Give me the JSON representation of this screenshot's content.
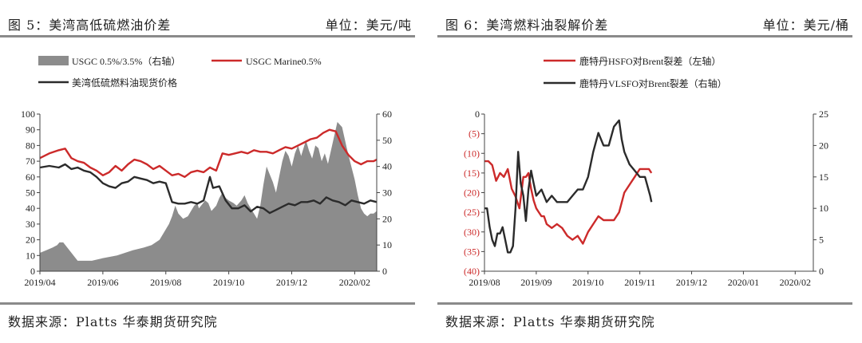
{
  "left": {
    "title": "图 5：美湾高低硫燃油价差",
    "unit": "单位：美元/吨",
    "source": "数据来源：Platts 华泰期货研究院"
  },
  "right": {
    "title": "图 6：美湾燃料油裂解价差",
    "unit": "单位：美元/桶",
    "source": "数据来源：Platts 华泰期货研究院"
  },
  "colors": {
    "red": "#cc2a2a",
    "dark": "#2b2b2b",
    "gray": "#8c8c8c",
    "axis": "#444444",
    "rule": "#8a8a8a"
  },
  "chart_data": [
    {
      "type": "area+line",
      "x_range": [
        "2019/04",
        "2020/02"
      ],
      "xtick_labels": [
        "2019/04",
        "2019/06",
        "2019/08",
        "2019/10",
        "2019/12",
        "2020/02"
      ],
      "y_left": {
        "lim": [
          0,
          100
        ],
        "ticks": [
          "0",
          "10",
          "20",
          "30",
          "40",
          "50",
          "60",
          "70",
          "80",
          "90",
          "100"
        ]
      },
      "y_right": {
        "lim": [
          0,
          60
        ],
        "ticks": [
          "0",
          "10",
          "20",
          "30",
          "40",
          "50",
          "60"
        ]
      },
      "legend": [
        "USGC 0.5%/3.5%（右轴）",
        "USGC Marine0.5%",
        "美湾低硫燃料油现货价格"
      ],
      "series": [
        {
          "name": "USGC 0.5%/3.5%（右轴）",
          "kind": "area",
          "axis": "right",
          "color": "#8c8c8c",
          "x": [
            0,
            0.2,
            0.4,
            0.55,
            0.62,
            0.74,
            1.2,
            1.65,
            2.0,
            2.45,
            2.7,
            2.95,
            3.3,
            3.55,
            3.8,
            3.95,
            4.1,
            4.2,
            4.3,
            4.4,
            4.55,
            4.7,
            4.8,
            4.9,
            5.0,
            5.05,
            5.12,
            5.25,
            5.35,
            5.45,
            5.6,
            5.7,
            5.8,
            5.9,
            6.0,
            6.15,
            6.25,
            6.4,
            6.5,
            6.6,
            6.7,
            6.8,
            6.9,
            7.0,
            7.1,
            7.2,
            7.3,
            7.4,
            7.5,
            7.6,
            7.7,
            7.8,
            7.9,
            8.0,
            8.1,
            8.2,
            8.3,
            8.45,
            8.55,
            8.65,
            8.75,
            8.85,
            8.95,
            9.05,
            9.15,
            9.3,
            9.45,
            9.6,
            9.75,
            9.85,
            10.0,
            10.1,
            10.2,
            10.3,
            10.4,
            10.5,
            10.6,
            10.7
          ],
          "values": [
            7,
            8,
            9,
            10,
            11,
            11,
            4,
            4,
            5,
            6,
            7,
            8,
            9,
            10,
            12,
            15,
            18,
            21,
            25,
            22,
            20,
            21,
            23,
            25,
            26,
            24,
            25,
            27,
            26,
            23,
            25,
            28,
            30,
            28,
            27,
            26,
            25,
            27,
            29,
            26,
            24,
            22,
            20,
            25,
            33,
            40,
            37,
            34,
            30,
            36,
            42,
            46,
            44,
            40,
            45,
            48,
            44,
            50,
            46,
            43,
            48,
            47,
            42,
            45,
            41,
            49,
            57,
            55,
            47,
            42,
            35,
            29,
            24,
            22,
            21,
            22,
            22,
            23
          ]
        },
        {
          "name": "USGC Marine0.5%",
          "kind": "line",
          "axis": "left",
          "color": "#cc2a2a",
          "x": [
            0,
            0.3,
            0.6,
            0.8,
            1.0,
            1.2,
            1.4,
            1.6,
            1.8,
            2.0,
            2.2,
            2.4,
            2.6,
            2.8,
            3.0,
            3.2,
            3.4,
            3.6,
            3.8,
            4.0,
            4.2,
            4.4,
            4.6,
            4.8,
            5.0,
            5.2,
            5.4,
            5.6,
            5.8,
            6.0,
            6.2,
            6.4,
            6.6,
            6.8,
            7.0,
            7.2,
            7.4,
            7.6,
            7.8,
            8.0,
            8.2,
            8.4,
            8.6,
            8.8,
            9.0,
            9.2,
            9.4,
            9.6,
            9.8,
            10.0,
            10.2,
            10.4,
            10.6,
            10.7
          ],
          "values": [
            72,
            75,
            77,
            78,
            72,
            70,
            69,
            66,
            64,
            61,
            63,
            67,
            64,
            68,
            71,
            70,
            68,
            65,
            67,
            64,
            61,
            62,
            60,
            63,
            64,
            63,
            66,
            64,
            75,
            74,
            75,
            76,
            75,
            77,
            76,
            76,
            75,
            77,
            79,
            78,
            80,
            82,
            84,
            85,
            88,
            90,
            89,
            80,
            74,
            70,
            68,
            70,
            70,
            71
          ]
        },
        {
          "name": "美湾低硫燃料油现货价格",
          "kind": "line",
          "axis": "left",
          "color": "#2b2b2b",
          "x": [
            0,
            0.3,
            0.6,
            0.8,
            1.0,
            1.2,
            1.4,
            1.6,
            1.8,
            2.0,
            2.2,
            2.4,
            2.6,
            2.8,
            3.0,
            3.2,
            3.4,
            3.6,
            3.8,
            4.0,
            4.2,
            4.4,
            4.6,
            4.8,
            5.0,
            5.2,
            5.4,
            5.5,
            5.7,
            5.9,
            6.1,
            6.3,
            6.5,
            6.7,
            6.9,
            7.1,
            7.3,
            7.5,
            7.7,
            7.9,
            8.1,
            8.3,
            8.5,
            8.7,
            8.9,
            9.1,
            9.3,
            9.5,
            9.7,
            9.9,
            10.1,
            10.3,
            10.5,
            10.7
          ],
          "values": [
            66,
            67,
            66,
            68,
            65,
            66,
            64,
            63,
            60,
            56,
            54,
            53,
            56,
            57,
            60,
            59,
            58,
            56,
            57,
            56,
            44,
            43,
            43,
            44,
            43,
            45,
            60,
            53,
            54,
            45,
            40,
            40,
            42,
            38,
            41,
            40,
            37,
            39,
            41,
            43,
            42,
            44,
            44,
            45,
            43,
            47,
            45,
            44,
            42,
            45,
            44,
            43,
            45,
            44
          ]
        }
      ]
    },
    {
      "type": "line",
      "x_range": [
        "2019/08",
        "2020/02"
      ],
      "xtick_labels": [
        "2019/08",
        "2019/09",
        "2019/10",
        "2019/11",
        "2019/12",
        "2020/01",
        "2020/02"
      ],
      "y_left": {
        "lim": [
          -40,
          0
        ],
        "ticks": [
          "0",
          "(5)",
          "(10)",
          "(15)",
          "(20)",
          "(25)",
          "(30)",
          "(35)",
          "(40)"
        ]
      },
      "y_right": {
        "lim": [
          0,
          25
        ],
        "ticks": [
          "0",
          "5",
          "10",
          "15",
          "20",
          "25"
        ]
      },
      "legend": [
        "鹿特丹HSFO对Brent裂差（左轴）",
        "鹿特丹VLSFO对Brent裂差（右轴）"
      ],
      "series": [
        {
          "name": "鹿特丹HSFO对Brent裂差（左轴）",
          "kind": "line",
          "axis": "left",
          "color": "#cc2a2a",
          "x": [
            0,
            0.15,
            0.3,
            0.45,
            0.6,
            0.75,
            0.9,
            1.05,
            1.2,
            1.35,
            1.5,
            1.6,
            1.7,
            1.8,
            1.9,
            2.0,
            2.1,
            2.2,
            2.3,
            2.4,
            2.6,
            2.8,
            3.0,
            3.2,
            3.4,
            3.6,
            3.8,
            4.0,
            4.2,
            4.4,
            4.6,
            4.8,
            5.0,
            5.2,
            5.4,
            5.6,
            5.8,
            6.0,
            6.2,
            6.35,
            6.45
          ],
          "values": [
            -12,
            -12,
            -13,
            -17,
            -15,
            -16,
            -14,
            -19,
            -21,
            -24,
            -16,
            -16,
            -15,
            -19,
            -22,
            -24,
            -25,
            -26,
            -26,
            -28,
            -29,
            -28,
            -29,
            -31,
            -32,
            -31,
            -33,
            -30,
            -28,
            -26,
            -27,
            -27,
            -27,
            -25,
            -20,
            -18,
            -16,
            -14,
            -14,
            -14,
            -15
          ]
        },
        {
          "name": "鹿特丹VLSFO对Brent裂差（右轴）",
          "kind": "line",
          "axis": "right",
          "color": "#2b2b2b",
          "x": [
            0,
            0.1,
            0.2,
            0.3,
            0.4,
            0.5,
            0.6,
            0.7,
            0.8,
            0.9,
            1.0,
            1.1,
            1.2,
            1.3,
            1.4,
            1.5,
            1.6,
            1.7,
            1.8,
            1.9,
            2.0,
            2.2,
            2.4,
            2.6,
            2.8,
            3.0,
            3.2,
            3.4,
            3.6,
            3.8,
            4.0,
            4.2,
            4.4,
            4.6,
            4.8,
            5.0,
            5.2,
            5.3,
            5.4,
            5.6,
            5.8,
            6.0,
            6.2,
            6.4,
            6.45
          ],
          "values": [
            10,
            10,
            7,
            5,
            4,
            6,
            6,
            7,
            5,
            3,
            3,
            4,
            10,
            19,
            14,
            12,
            8,
            13,
            16,
            14,
            12,
            13,
            11,
            12,
            11,
            11,
            11,
            12,
            13,
            13,
            15,
            19,
            22,
            20,
            20,
            23,
            24,
            21,
            19,
            17,
            16,
            15,
            15,
            12,
            11
          ]
        }
      ]
    }
  ]
}
